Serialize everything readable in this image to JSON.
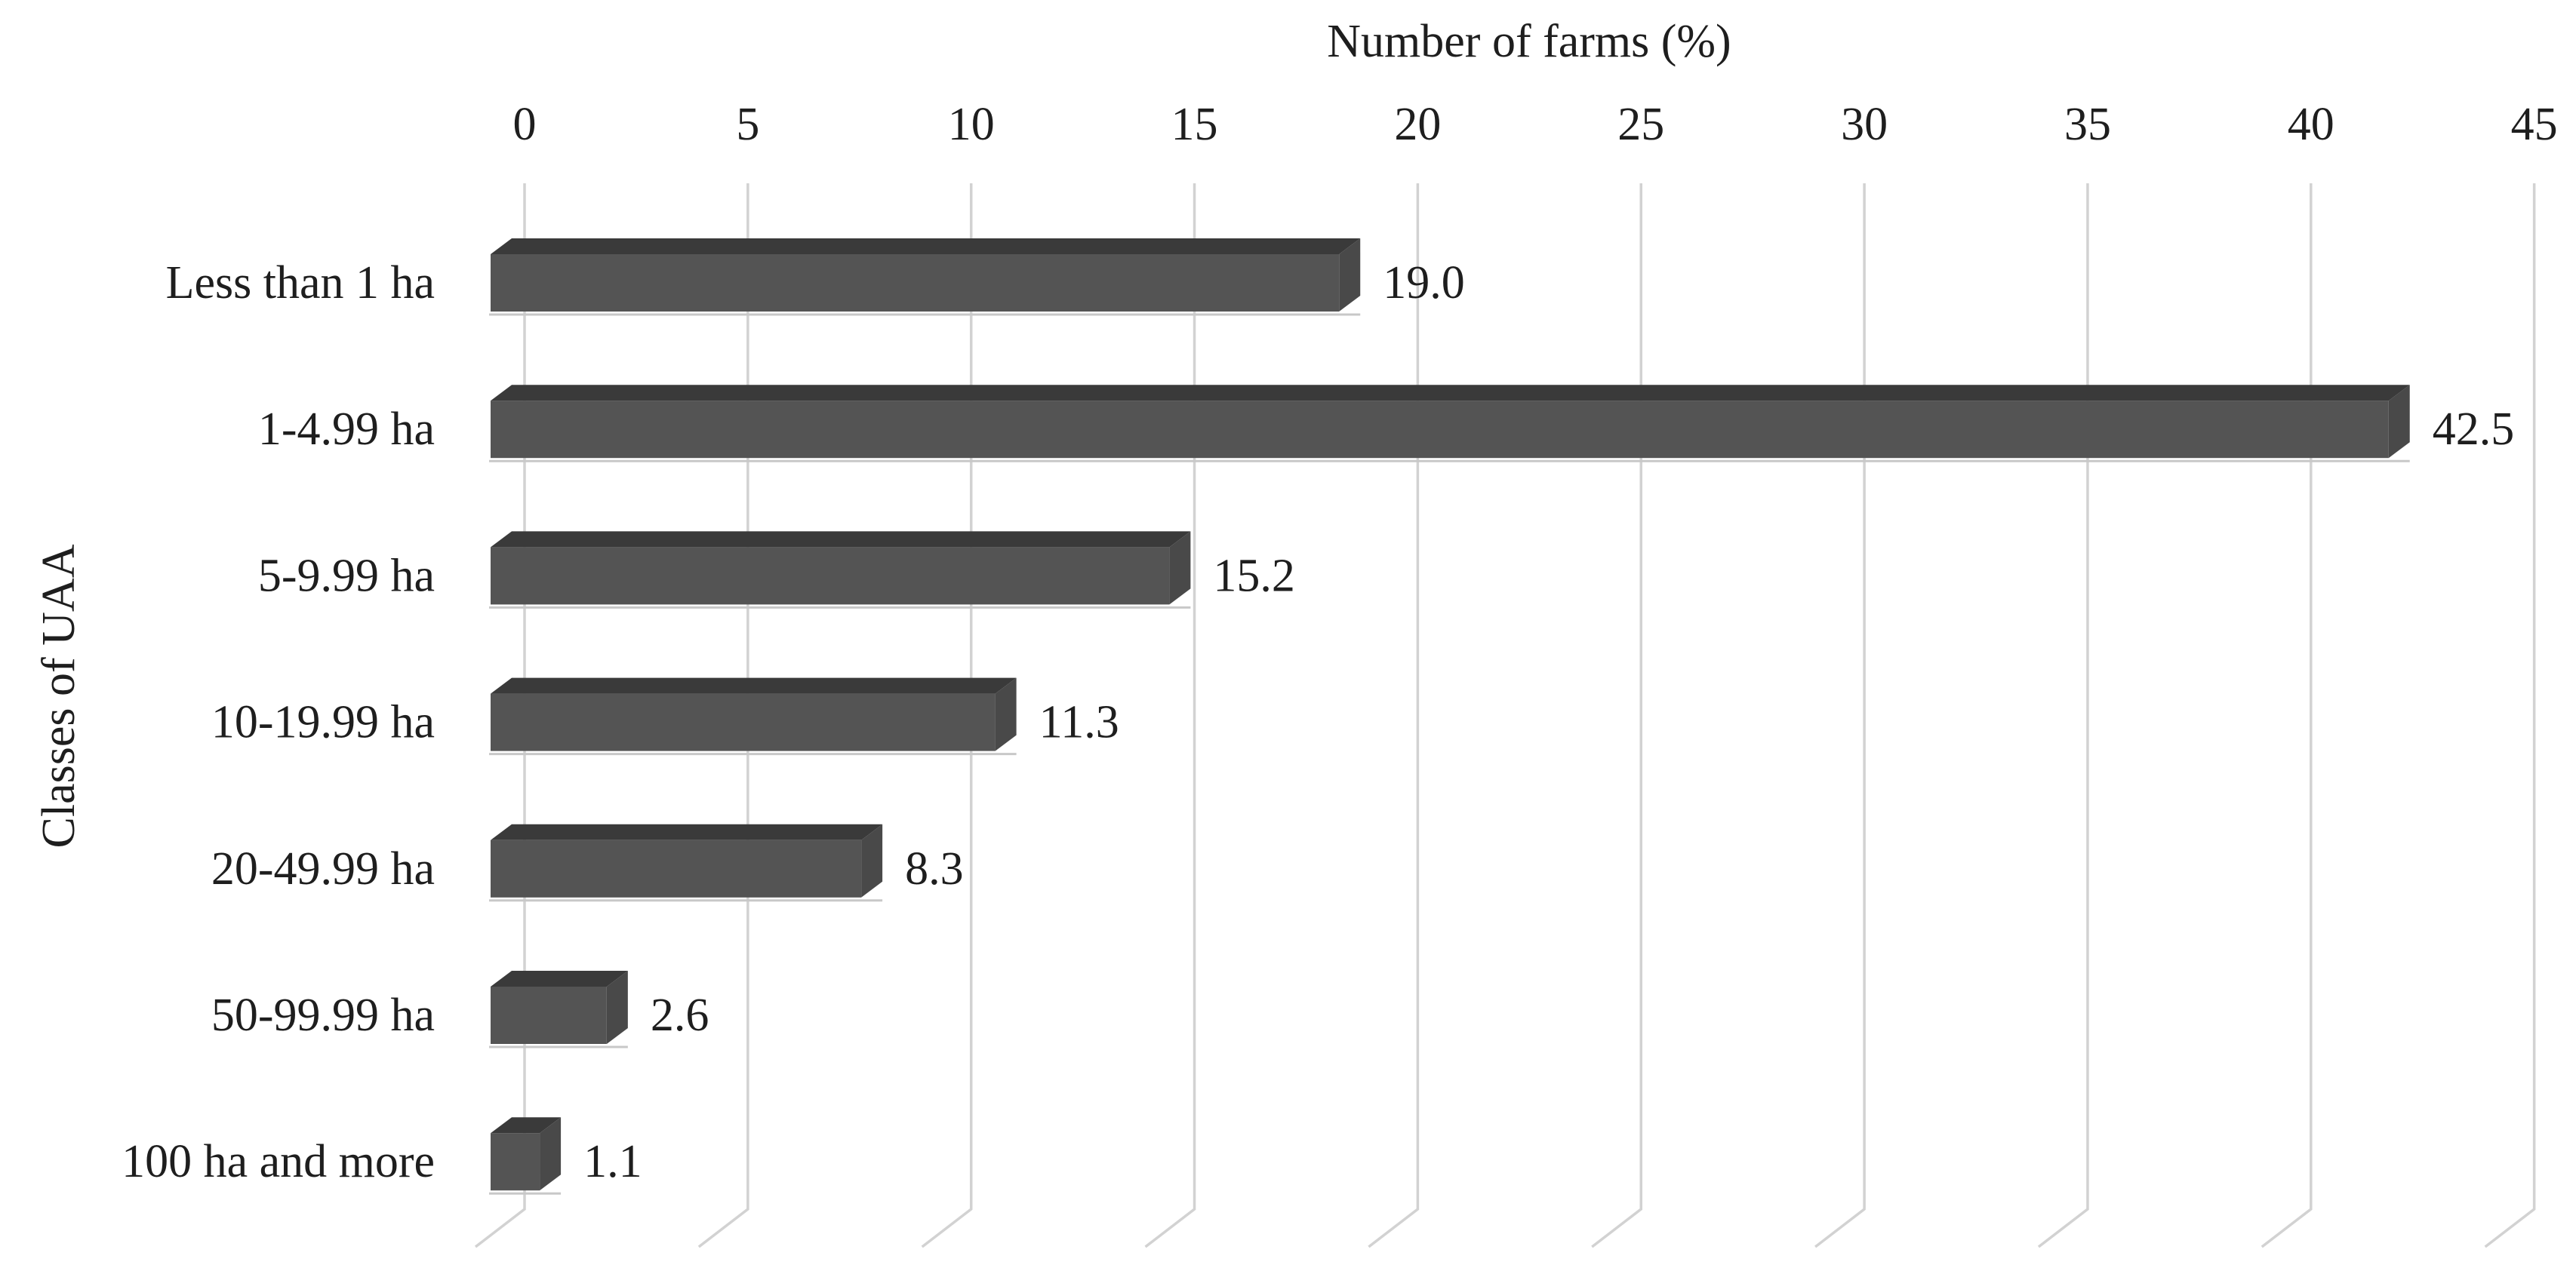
{
  "chart_data": {
    "type": "bar",
    "orientation": "horizontal",
    "style": "3d",
    "xlabel": "Number of farms (%)",
    "ylabel": "Classes of UAA",
    "categories": [
      "Less than 1 ha",
      "1-4.99 ha",
      "5-9.99 ha",
      "10-19.99 ha",
      "20-49.99 ha",
      "50-99.99 ha",
      "100 ha and more"
    ],
    "values": [
      19.0,
      42.5,
      15.2,
      11.3,
      8.3,
      2.6,
      1.1
    ],
    "value_labels": [
      "19.0",
      "42.5",
      "15.2",
      "11.3",
      "8.3",
      "2.6",
      "1.1"
    ],
    "xticks": [
      0,
      5,
      10,
      15,
      20,
      25,
      30,
      35,
      40,
      45
    ],
    "xlim": [
      0,
      45
    ],
    "grid": true,
    "legend_position": "none",
    "colors": {
      "bar_front": "#545454",
      "bar_top": "#3a3a3a",
      "bar_side": "#494949",
      "bar_underline": "#c8c8c8",
      "gridline": "#d2d2d2",
      "text": "#1e1e1e",
      "background": "#ffffff"
    }
  }
}
